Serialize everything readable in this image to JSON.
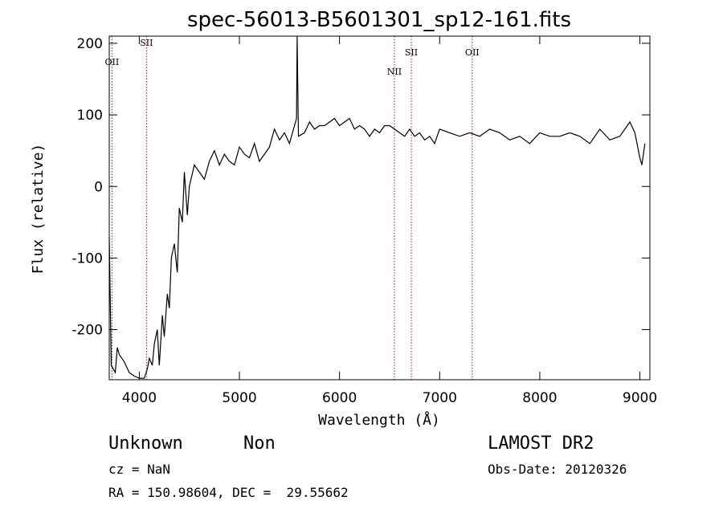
{
  "chart_data": {
    "type": "line",
    "title": "spec-56013-B5601301_sp12-161.fits",
    "xlabel": "Wavelength (Å)",
    "ylabel": "Flux (relative)",
    "xlim": [
      3700,
      9100
    ],
    "ylim": [
      -270,
      210
    ],
    "xticks": [
      4000,
      5000,
      6000,
      7000,
      8000,
      9000
    ],
    "yticks": [
      -200,
      -100,
      0,
      100,
      200
    ],
    "series": [
      {
        "x": [
          3700,
          3720,
          3760,
          3780,
          3800,
          3850,
          3900,
          3950,
          4000,
          4050,
          4080,
          4100,
          4130,
          4150,
          4180,
          4200,
          4230,
          4250,
          4280,
          4300,
          4320,
          4350,
          4380,
          4400,
          4430,
          4450,
          4480,
          4500,
          4550,
          4600,
          4650,
          4700,
          4750,
          4800,
          4850,
          4900,
          4950,
          5000,
          5050,
          5100,
          5150,
          5200,
          5250,
          5300,
          5350,
          5400,
          5450,
          5500,
          5550,
          5570,
          5577,
          5590,
          5650,
          5700,
          5750,
          5800,
          5850,
          5900,
          5950,
          6000,
          6050,
          6100,
          6150,
          6200,
          6250,
          6300,
          6350,
          6400,
          6450,
          6500,
          6550,
          6600,
          6650,
          6700,
          6750,
          6800,
          6850,
          6900,
          6950,
          7000,
          7100,
          7200,
          7300,
          7400,
          7500,
          7600,
          7700,
          7800,
          7900,
          8000,
          8100,
          8200,
          8300,
          8400,
          8500,
          8600,
          8700,
          8800,
          8850,
          8900,
          8950,
          9000,
          9020,
          9050
        ],
        "y": [
          -70,
          -250,
          -260,
          -225,
          -235,
          -245,
          -260,
          -265,
          -268,
          -268,
          -255,
          -240,
          -250,
          -220,
          -200,
          -250,
          -180,
          -210,
          -150,
          -170,
          -100,
          -80,
          -120,
          -30,
          -50,
          20,
          -40,
          0,
          30,
          20,
          10,
          35,
          50,
          30,
          45,
          35,
          30,
          55,
          45,
          40,
          60,
          35,
          45,
          55,
          80,
          65,
          75,
          60,
          85,
          95,
          210,
          70,
          75,
          90,
          80,
          85,
          85,
          90,
          95,
          85,
          90,
          95,
          80,
          85,
          80,
          70,
          80,
          75,
          85,
          85,
          80,
          75,
          70,
          80,
          70,
          75,
          65,
          70,
          60,
          80,
          75,
          70,
          75,
          70,
          80,
          75,
          65,
          70,
          60,
          75,
          70,
          70,
          75,
          70,
          60,
          80,
          65,
          70,
          80,
          90,
          75,
          40,
          30,
          60
        ]
      }
    ],
    "lines": [
      {
        "label": "OII",
        "x": 3727
      },
      {
        "label": "SII",
        "x": 4072
      },
      {
        "label": "NII",
        "x": 6548
      },
      {
        "label": "SII",
        "x": 6717
      },
      {
        "label": "OII",
        "x": 7325
      }
    ],
    "colors": {
      "spectrum": "#000000",
      "marker": "#9b1c1c"
    }
  },
  "footer": {
    "class_text": "Unknown",
    "subclass_text": "Non",
    "survey": "LAMOST DR2",
    "cz": "cz = NaN",
    "obs_date": "Obs-Date: 20120326",
    "coords": "RA = 150.98604, DEC =  29.55662"
  }
}
